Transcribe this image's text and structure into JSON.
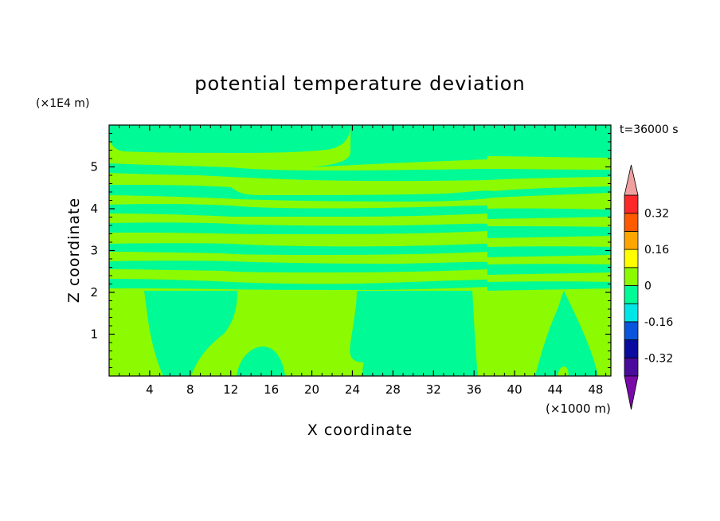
{
  "chart_data": {
    "type": "heatmap",
    "title": "potential temperature deviation",
    "xlabel": "X coordinate",
    "ylabel": "Z coordinate",
    "x_unit": "(×1000 m)",
    "y_unit": "(×1E4 m)",
    "time_label": "t=36000 s",
    "xlim": [
      0,
      49.5
    ],
    "ylim": [
      0,
      6
    ],
    "x_ticks": [
      4,
      8,
      12,
      16,
      20,
      24,
      28,
      32,
      36,
      40,
      44,
      48
    ],
    "y_ticks": [
      1,
      2,
      3,
      4,
      5
    ],
    "colorbar": {
      "levels": [
        -0.4,
        -0.32,
        -0.24,
        -0.16,
        -0.08,
        0,
        0.08,
        0.16,
        0.24,
        0.32,
        0.4
      ],
      "labels": [
        "-0.32",
        "-0.16",
        "0",
        "0.16",
        "0.32"
      ],
      "colors": {
        "under": "#7a0aa8",
        "bins": [
          "#4a0a9c",
          "#0a0aa0",
          "#0a55dc",
          "#00e6e6",
          "#00fa96",
          "#8cfa00",
          "#ffff00",
          "#ffa500",
          "#ff5a00",
          "#ff2828"
        ],
        "over": "#f0a0a0"
      },
      "extend": "both"
    },
    "dominant_bins": {
      "negative_small": {
        "range": [
          -0.08,
          0
        ],
        "color": "#00fa96"
      },
      "positive_small": {
        "range": [
          0,
          0.08
        ],
        "color": "#8cfa00"
      }
    }
  }
}
